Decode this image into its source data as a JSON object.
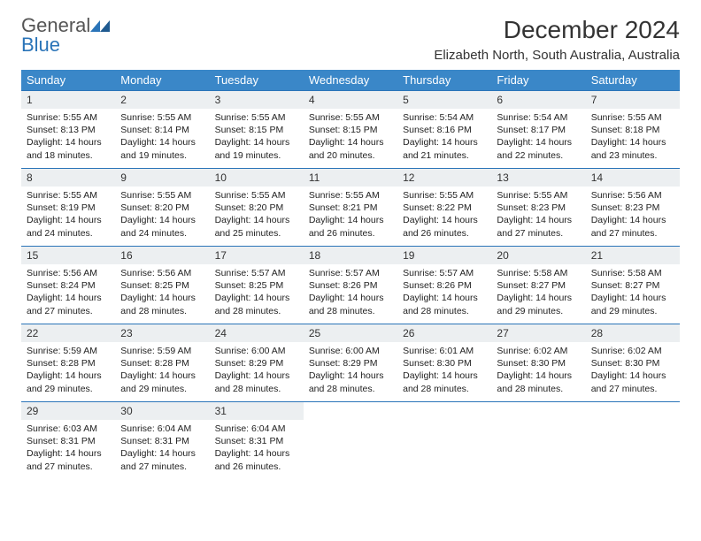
{
  "logo": {
    "general": "General",
    "blue": "Blue"
  },
  "title": "December 2024",
  "location": "Elizabeth North, South Australia, Australia",
  "colors": {
    "header_bg": "#3a87c8",
    "header_fg": "#ffffff",
    "daynum_bg": "#eceff1",
    "border": "#2a74b8",
    "logo_gray": "#555555",
    "logo_blue": "#2a74b8"
  },
  "weekdays": [
    "Sunday",
    "Monday",
    "Tuesday",
    "Wednesday",
    "Thursday",
    "Friday",
    "Saturday"
  ],
  "weeks": [
    [
      {
        "n": "1",
        "sr": "5:55 AM",
        "ss": "8:13 PM",
        "dh": "14",
        "dm": "18"
      },
      {
        "n": "2",
        "sr": "5:55 AM",
        "ss": "8:14 PM",
        "dh": "14",
        "dm": "19"
      },
      {
        "n": "3",
        "sr": "5:55 AM",
        "ss": "8:15 PM",
        "dh": "14",
        "dm": "19"
      },
      {
        "n": "4",
        "sr": "5:55 AM",
        "ss": "8:15 PM",
        "dh": "14",
        "dm": "20"
      },
      {
        "n": "5",
        "sr": "5:54 AM",
        "ss": "8:16 PM",
        "dh": "14",
        "dm": "21"
      },
      {
        "n": "6",
        "sr": "5:54 AM",
        "ss": "8:17 PM",
        "dh": "14",
        "dm": "22"
      },
      {
        "n": "7",
        "sr": "5:55 AM",
        "ss": "8:18 PM",
        "dh": "14",
        "dm": "23"
      }
    ],
    [
      {
        "n": "8",
        "sr": "5:55 AM",
        "ss": "8:19 PM",
        "dh": "14",
        "dm": "24"
      },
      {
        "n": "9",
        "sr": "5:55 AM",
        "ss": "8:20 PM",
        "dh": "14",
        "dm": "24"
      },
      {
        "n": "10",
        "sr": "5:55 AM",
        "ss": "8:20 PM",
        "dh": "14",
        "dm": "25"
      },
      {
        "n": "11",
        "sr": "5:55 AM",
        "ss": "8:21 PM",
        "dh": "14",
        "dm": "26"
      },
      {
        "n": "12",
        "sr": "5:55 AM",
        "ss": "8:22 PM",
        "dh": "14",
        "dm": "26"
      },
      {
        "n": "13",
        "sr": "5:55 AM",
        "ss": "8:23 PM",
        "dh": "14",
        "dm": "27"
      },
      {
        "n": "14",
        "sr": "5:56 AM",
        "ss": "8:23 PM",
        "dh": "14",
        "dm": "27"
      }
    ],
    [
      {
        "n": "15",
        "sr": "5:56 AM",
        "ss": "8:24 PM",
        "dh": "14",
        "dm": "27"
      },
      {
        "n": "16",
        "sr": "5:56 AM",
        "ss": "8:25 PM",
        "dh": "14",
        "dm": "28"
      },
      {
        "n": "17",
        "sr": "5:57 AM",
        "ss": "8:25 PM",
        "dh": "14",
        "dm": "28"
      },
      {
        "n": "18",
        "sr": "5:57 AM",
        "ss": "8:26 PM",
        "dh": "14",
        "dm": "28"
      },
      {
        "n": "19",
        "sr": "5:57 AM",
        "ss": "8:26 PM",
        "dh": "14",
        "dm": "28"
      },
      {
        "n": "20",
        "sr": "5:58 AM",
        "ss": "8:27 PM",
        "dh": "14",
        "dm": "29"
      },
      {
        "n": "21",
        "sr": "5:58 AM",
        "ss": "8:27 PM",
        "dh": "14",
        "dm": "29"
      }
    ],
    [
      {
        "n": "22",
        "sr": "5:59 AM",
        "ss": "8:28 PM",
        "dh": "14",
        "dm": "29"
      },
      {
        "n": "23",
        "sr": "5:59 AM",
        "ss": "8:28 PM",
        "dh": "14",
        "dm": "29"
      },
      {
        "n": "24",
        "sr": "6:00 AM",
        "ss": "8:29 PM",
        "dh": "14",
        "dm": "28"
      },
      {
        "n": "25",
        "sr": "6:00 AM",
        "ss": "8:29 PM",
        "dh": "14",
        "dm": "28"
      },
      {
        "n": "26",
        "sr": "6:01 AM",
        "ss": "8:30 PM",
        "dh": "14",
        "dm": "28"
      },
      {
        "n": "27",
        "sr": "6:02 AM",
        "ss": "8:30 PM",
        "dh": "14",
        "dm": "28"
      },
      {
        "n": "28",
        "sr": "6:02 AM",
        "ss": "8:30 PM",
        "dh": "14",
        "dm": "27"
      }
    ],
    [
      {
        "n": "29",
        "sr": "6:03 AM",
        "ss": "8:31 PM",
        "dh": "14",
        "dm": "27"
      },
      {
        "n": "30",
        "sr": "6:04 AM",
        "ss": "8:31 PM",
        "dh": "14",
        "dm": "27"
      },
      {
        "n": "31",
        "sr": "6:04 AM",
        "ss": "8:31 PM",
        "dh": "14",
        "dm": "26"
      },
      null,
      null,
      null,
      null
    ]
  ],
  "labels": {
    "sunrise": "Sunrise:",
    "sunset": "Sunset:",
    "daylight": "Daylight:",
    "hours": "hours",
    "and": "and",
    "minutes": "minutes."
  }
}
